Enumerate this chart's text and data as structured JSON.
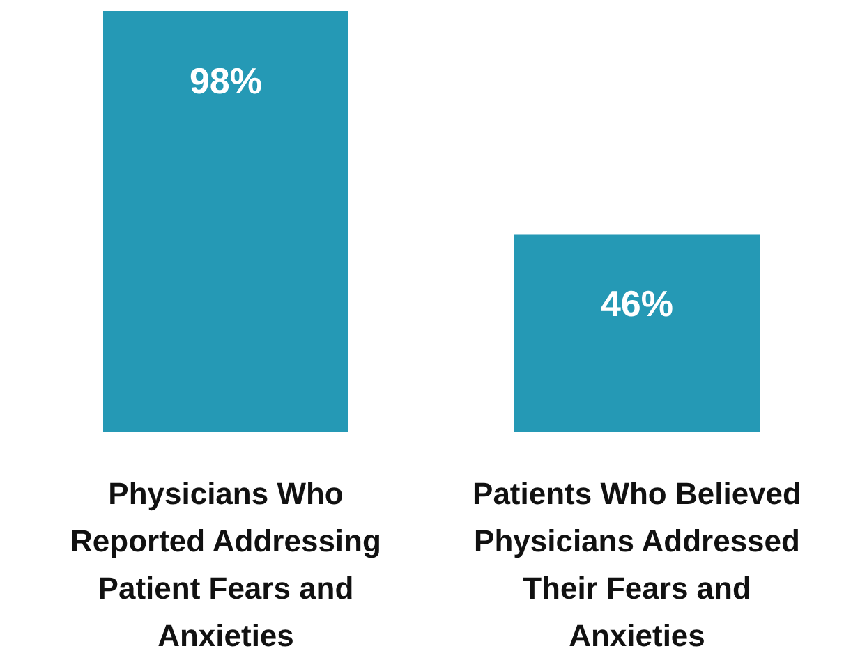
{
  "chart_data": {
    "type": "bar",
    "categories": [
      "Physicians Who Reported Addressing Patient Fears and Anxieties",
      "Patients Who Believed Physicians Addressed Their Fears and Anxieties"
    ],
    "values": [
      98,
      46
    ],
    "value_labels": [
      "98%",
      "46%"
    ],
    "color": "#2599b5"
  }
}
